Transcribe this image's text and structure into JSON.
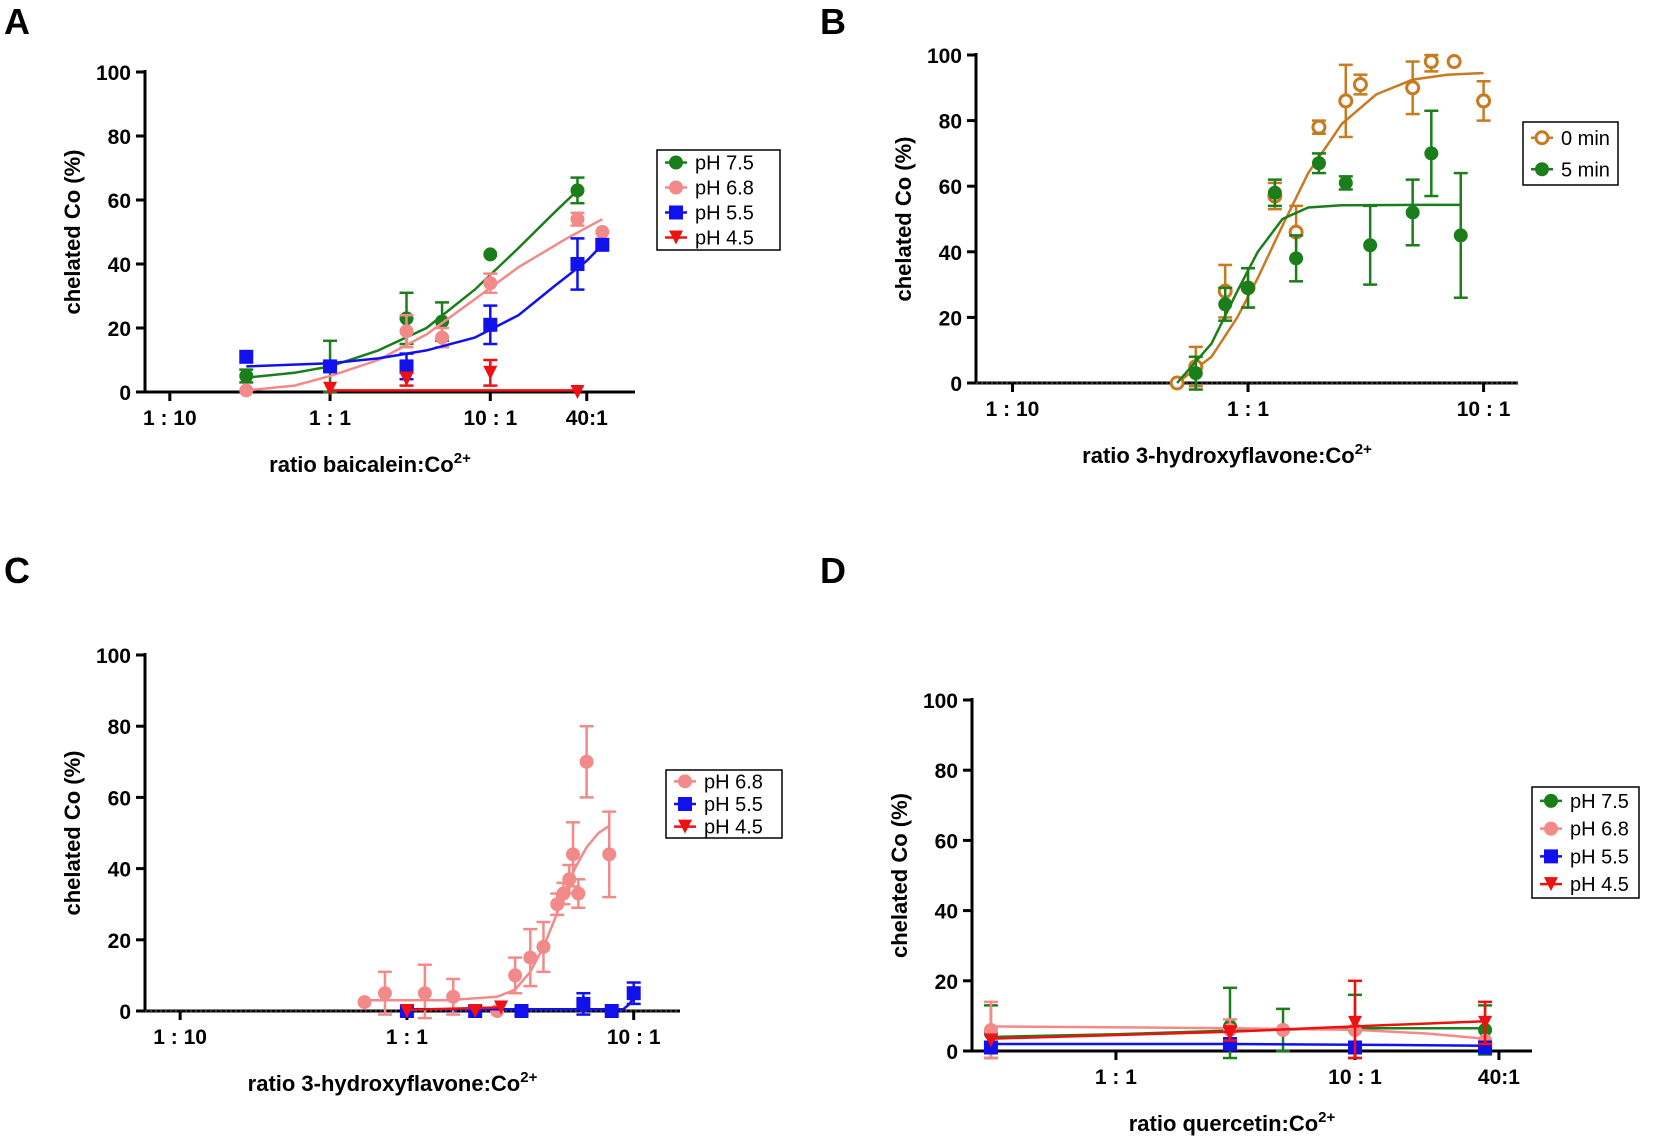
{
  "chart_data": [
    {
      "panel": "A",
      "type": "scatter",
      "xlabel": "ratio baicalein:Co2+",
      "ylabel": "chelated Co (%)",
      "x_scale": "log",
      "x_ticks": [
        {
          "value": 0.1,
          "label": "1 : 10"
        },
        {
          "value": 1,
          "label": "1 : 1"
        },
        {
          "value": 10,
          "label": "10 : 1"
        },
        {
          "value": 40,
          "label": "40:1"
        }
      ],
      "y_ticks": [
        0,
        20,
        40,
        60,
        80,
        100
      ],
      "xlim": [
        0.07,
        80
      ],
      "ylim": [
        0,
        100
      ],
      "baseline": false,
      "legend": "right",
      "series": [
        {
          "name": "pH 7.5",
          "color": "#1a7f1a",
          "marker": "circle",
          "points": [
            [
              0.3,
              5,
              2
            ],
            [
              1,
              8,
              8
            ],
            [
              3,
              23,
              8
            ],
            [
              5,
              22,
              6
            ],
            [
              10,
              43,
              1
            ],
            [
              35,
              63,
              4
            ]
          ],
          "curve": [
            [
              0.3,
              4.5
            ],
            [
              0.6,
              6
            ],
            [
              1,
              8
            ],
            [
              2,
              13
            ],
            [
              4,
              20
            ],
            [
              8,
              32
            ],
            [
              15,
              45
            ],
            [
              25,
              56
            ],
            [
              35,
              63
            ]
          ]
        },
        {
          "name": "pH 6.8",
          "color": "#f28a8a",
          "marker": "circle",
          "points": [
            [
              0.3,
              0.5,
              1
            ],
            [
              3,
              19,
              5
            ],
            [
              5,
              17,
              3
            ],
            [
              10,
              34,
              3
            ],
            [
              35,
              54,
              2
            ],
            [
              50,
              50,
              1
            ]
          ],
          "curve": [
            [
              0.3,
              0.5
            ],
            [
              0.6,
              2
            ],
            [
              1,
              5
            ],
            [
              2,
              10
            ],
            [
              4,
              18
            ],
            [
              8,
              29
            ],
            [
              15,
              39
            ],
            [
              30,
              48
            ],
            [
              50,
              54
            ]
          ]
        },
        {
          "name": "pH 5.5",
          "color": "#1111ee",
          "marker": "square",
          "points": [
            [
              0.3,
              11,
              1
            ],
            [
              1,
              8,
              1
            ],
            [
              3,
              8,
              4
            ],
            [
              10,
              21,
              6
            ],
            [
              35,
              40,
              8
            ],
            [
              50,
              46,
              1
            ]
          ],
          "curve": [
            [
              0.3,
              8
            ],
            [
              1,
              9
            ],
            [
              2,
              10.5
            ],
            [
              4,
              13
            ],
            [
              8,
              17
            ],
            [
              15,
              24
            ],
            [
              25,
              33
            ],
            [
              40,
              41
            ],
            [
              50,
              46
            ]
          ]
        },
        {
          "name": "pH 4.5",
          "color": "#ee1111",
          "marker": "triangle",
          "points": [
            [
              1,
              1,
              1
            ],
            [
              3,
              4,
              2
            ],
            [
              10,
              6,
              4
            ],
            [
              35,
              0,
              1
            ]
          ],
          "curve": [
            [
              1,
              0.5
            ],
            [
              35,
              0.5
            ]
          ]
        }
      ]
    },
    {
      "panel": "B",
      "type": "scatter",
      "xlabel": "ratio 3-hydroxyflavone:Co2+",
      "ylabel": "chelated Co (%)",
      "x_scale": "log",
      "x_ticks": [
        {
          "value": 0.1,
          "label": "1 : 10"
        },
        {
          "value": 1,
          "label": "1 : 1"
        },
        {
          "value": 10,
          "label": "10 : 1"
        }
      ],
      "y_ticks": [
        0,
        20,
        40,
        60,
        80,
        100
      ],
      "xlim": [
        0.07,
        14
      ],
      "ylim": [
        0,
        100
      ],
      "baseline": true,
      "legend": "right",
      "series": [
        {
          "name": "0 min",
          "color": "#c77a1f",
          "marker": "open-circle",
          "points": [
            [
              0.5,
              0,
              1
            ],
            [
              0.6,
              5,
              6
            ],
            [
              0.8,
              28,
              8
            ],
            [
              1,
              29,
              6
            ],
            [
              1.3,
              57,
              4
            ],
            [
              1.6,
              46,
              8
            ],
            [
              2,
              78,
              2
            ],
            [
              2.6,
              86,
              11
            ],
            [
              3,
              91,
              3
            ],
            [
              5,
              90,
              8
            ],
            [
              6,
              98,
              3
            ],
            [
              7.5,
              98,
              1
            ],
            [
              10,
              86,
              6
            ]
          ],
          "curve": [
            [
              0.5,
              0
            ],
            [
              0.7,
              8
            ],
            [
              0.9,
              20
            ],
            [
              1.1,
              32
            ],
            [
              1.4,
              48
            ],
            [
              1.8,
              64
            ],
            [
              2.5,
              79
            ],
            [
              3.5,
              88
            ],
            [
              5,
              92.5
            ],
            [
              7,
              94
            ],
            [
              10,
              94.5
            ]
          ]
        },
        {
          "name": "5 min",
          "color": "#1a7f1a",
          "marker": "circle",
          "points": [
            [
              0.6,
              3,
              5
            ],
            [
              0.8,
              24,
              5
            ],
            [
              1,
              29,
              6
            ],
            [
              1.3,
              58,
              4
            ],
            [
              1.6,
              38,
              7
            ],
            [
              2,
              67,
              3
            ],
            [
              2.6,
              61,
              2
            ],
            [
              3.3,
              42,
              12
            ],
            [
              5,
              52,
              10
            ],
            [
              6,
              70,
              13
            ],
            [
              8,
              45,
              19
            ]
          ],
          "curve": [
            [
              0.5,
              0
            ],
            [
              0.7,
              12
            ],
            [
              0.9,
              28
            ],
            [
              1.1,
              40
            ],
            [
              1.4,
              50
            ],
            [
              1.8,
              53.5
            ],
            [
              2.5,
              54.2
            ],
            [
              5,
              54.3
            ],
            [
              8,
              54.3
            ]
          ]
        }
      ]
    },
    {
      "panel": "C",
      "type": "scatter",
      "xlabel": "ratio 3-hydroxyflavone:Co2+",
      "ylabel": "chelated Co (%)",
      "x_scale": "log",
      "x_ticks": [
        {
          "value": 0.1,
          "label": "1 : 10"
        },
        {
          "value": 1,
          "label": "1 : 1"
        },
        {
          "value": 10,
          "label": "10 : 1"
        }
      ],
      "y_ticks": [
        0,
        20,
        40,
        60,
        80,
        100
      ],
      "xlim": [
        0.07,
        16
      ],
      "ylim": [
        0,
        100
      ],
      "baseline": true,
      "legend": "right",
      "series": [
        {
          "name": "pH 6.8",
          "color": "#f28a8a",
          "marker": "circle",
          "points": [
            [
              0.65,
              2.5,
              1
            ],
            [
              0.8,
              5,
              6
            ],
            [
              1.2,
              5,
              8
            ],
            [
              1.6,
              4,
              5
            ],
            [
              2.5,
              0,
              1
            ],
            [
              3,
              10,
              5
            ],
            [
              3.5,
              15,
              8
            ],
            [
              4,
              18,
              7
            ],
            [
              4.6,
              30,
              3
            ],
            [
              4.9,
              33,
              3
            ],
            [
              5.2,
              37,
              4
            ],
            [
              5.4,
              44,
              9
            ],
            [
              5.7,
              33,
              4
            ],
            [
              6.2,
              70,
              10
            ],
            [
              7.8,
              44,
              12
            ]
          ],
          "curve": [
            [
              0.65,
              3
            ],
            [
              1.5,
              3
            ],
            [
              2.5,
              4
            ],
            [
              3,
              6
            ],
            [
              3.5,
              11
            ],
            [
              4,
              18
            ],
            [
              4.5,
              26
            ],
            [
              5,
              34
            ],
            [
              5.5,
              40
            ],
            [
              6.2,
              46
            ],
            [
              7,
              50
            ],
            [
              7.8,
              52
            ]
          ]
        },
        {
          "name": "pH 5.5",
          "color": "#1111ee",
          "marker": "square",
          "points": [
            [
              1,
              0,
              1
            ],
            [
              2,
              0,
              1
            ],
            [
              3.2,
              0,
              1
            ],
            [
              6,
              2,
              3
            ],
            [
              8,
              0,
              1
            ],
            [
              10,
              5,
              3
            ]
          ],
          "curve": [
            [
              1,
              0.5
            ],
            [
              9,
              0.5
            ],
            [
              9.6,
              2
            ],
            [
              10,
              4
            ]
          ]
        },
        {
          "name": "pH 4.5",
          "color": "#ee1111",
          "marker": "triangle",
          "points": [
            [
              1,
              0,
              1
            ],
            [
              2,
              0,
              1
            ],
            [
              2.6,
              1,
              1
            ]
          ],
          "curve": [
            [
              1,
              0.3
            ],
            [
              2.6,
              1
            ]
          ]
        }
      ]
    },
    {
      "panel": "D",
      "type": "scatter",
      "xlabel": "ratio quercetin:Co2+",
      "ylabel": "chelated Co (%)",
      "x_scale": "log",
      "x_ticks": [
        {
          "value": 1,
          "label": "1 : 1"
        },
        {
          "value": 10,
          "label": "10 : 1"
        },
        {
          "value": 40,
          "label": "40:1"
        }
      ],
      "y_ticks": [
        0,
        20,
        40,
        60,
        80,
        100
      ],
      "xlim": [
        0.25,
        55
      ],
      "ylim": [
        0,
        100
      ],
      "baseline": false,
      "legend": "right",
      "series": [
        {
          "name": "pH 7.5",
          "color": "#1a7f1a",
          "marker": "circle",
          "points": [
            [
              0.3,
              5,
              8
            ],
            [
              3,
              7,
              11
            ],
            [
              5,
              6,
              6
            ],
            [
              10,
              6,
              10
            ],
            [
              35,
              6,
              7
            ]
          ],
          "curve": [
            [
              0.3,
              4
            ],
            [
              1,
              4.8
            ],
            [
              3,
              5.8
            ],
            [
              10,
              6.5
            ],
            [
              35,
              6.5
            ]
          ]
        },
        {
          "name": "pH 6.8",
          "color": "#f28a8a",
          "marker": "circle",
          "points": [
            [
              0.3,
              6,
              8
            ],
            [
              3,
              6,
              3
            ],
            [
              5,
              6,
              1
            ],
            [
              10,
              6,
              1
            ],
            [
              35,
              3,
              1
            ]
          ],
          "curve": [
            [
              0.3,
              7
            ],
            [
              3,
              6.5
            ],
            [
              10,
              6
            ],
            [
              20,
              5
            ],
            [
              35,
              3.5
            ]
          ]
        },
        {
          "name": "pH 5.5",
          "color": "#1111ee",
          "marker": "square",
          "points": [
            [
              0.3,
              1,
              1
            ],
            [
              3,
              2,
              1
            ],
            [
              10,
              1,
              1
            ],
            [
              35,
              1,
              1
            ]
          ],
          "curve": [
            [
              0.3,
              2
            ],
            [
              3,
              2
            ],
            [
              10,
              1.8
            ],
            [
              35,
              1.5
            ]
          ]
        },
        {
          "name": "pH 4.5",
          "color": "#ee1111",
          "marker": "triangle",
          "points": [
            [
              0.3,
              3,
              1
            ],
            [
              3,
              5,
              2
            ],
            [
              10,
              8,
              12
            ],
            [
              35,
              8,
              6
            ]
          ],
          "curve": [
            [
              0.3,
              3.5
            ],
            [
              3,
              5.5
            ],
            [
              10,
              7
            ],
            [
              35,
              8.5
            ]
          ]
        }
      ]
    }
  ]
}
